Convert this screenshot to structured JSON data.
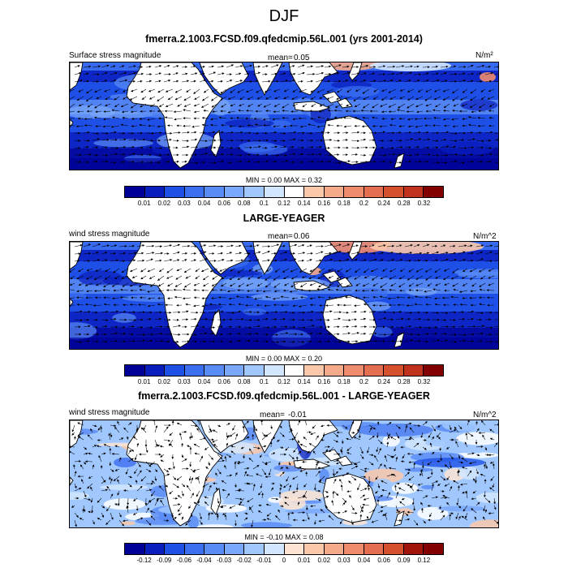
{
  "figure": {
    "title": "DJF"
  },
  "colors": {
    "neg": [
      "#000096",
      "#0a1ebe",
      "#1e50e6",
      "#3c6ef0",
      "#5a8cf5",
      "#7aa8fa",
      "#a0c8ff",
      "#d2e6ff"
    ],
    "pos": [
      "#ffffff",
      "#fde4d2",
      "#fbc8aa",
      "#f5aa8a",
      "#ef8c6e",
      "#e36e50",
      "#d5502d",
      "#c0321e",
      "#a0140a",
      "#820000"
    ],
    "land": "#ffffff",
    "arrow": "#000000"
  },
  "panels": [
    {
      "title": "fmerra.2.1003.FCSD.f09.qfedcmip.56L.001 (yrs 2001-2014)",
      "left_label": "Surface stress magnitude",
      "mean_label": "mean=",
      "mean_value": "0.05",
      "units": "N/m²",
      "min_label": "MIN =",
      "min_value": "0.00",
      "max_label": "MAX =",
      "max_value": "0.32"
    },
    {
      "title": "LARGE-YEAGER",
      "left_label": "wind stress magnitude",
      "mean_label": "mean=",
      "mean_value": "0.06",
      "units": "N/m^2",
      "min_label": "MIN =",
      "min_value": "0.00",
      "max_label": "MAX =",
      "max_value": "0.20"
    },
    {
      "title": "fmerra.2.1003.FCSD.f09.qfedcmip.56L.001 - LARGE-YEAGER",
      "left_label": "wind stress magnitude",
      "mean_label": "mean=",
      "mean_value": "-0.01",
      "units": "N/m^2",
      "min_label": "MIN =",
      "min_value": "-0.10",
      "max_label": "MAX =",
      "max_value": "0.08"
    }
  ],
  "chart_data": [
    {
      "type": "heatmap",
      "title": "fmerra.2.1003.FCSD.f09.qfedcmip.56L.001 (yrs 2001-2014)",
      "variable": "Surface stress magnitude",
      "units": "N/m²",
      "mean": 0.05,
      "min": 0.0,
      "max": 0.32,
      "colorbar_levels": [
        0.01,
        0.02,
        0.03,
        0.04,
        0.06,
        0.08,
        0.1,
        0.12,
        0.14,
        0.16,
        0.18,
        0.2,
        0.24,
        0.28,
        0.32
      ],
      "colorbar_labels": [
        "0.01",
        "0.02",
        "0.03",
        "0.04",
        "0.06",
        "0.08",
        "0.1",
        "0.12",
        "0.14",
        "0.16",
        "0.18",
        "0.2",
        "0.24",
        "0.28",
        "0.32"
      ],
      "colorbar_colors": [
        "#000096",
        "#0a1ebe",
        "#1e50e6",
        "#3c6ef0",
        "#5a8cf5",
        "#7aa8fa",
        "#a0c8ff",
        "#d2e6ff",
        "#ffffff",
        "#fbc8aa",
        "#f5aa8a",
        "#ef8c6e",
        "#e36e50",
        "#d5502d",
        "#c0321e",
        "#820000"
      ]
    },
    {
      "type": "heatmap",
      "title": "LARGE-YEAGER",
      "variable": "wind stress magnitude",
      "units": "N/m^2",
      "mean": 0.06,
      "min": 0.0,
      "max": 0.2,
      "colorbar_levels": [
        0.01,
        0.02,
        0.03,
        0.04,
        0.06,
        0.08,
        0.1,
        0.12,
        0.14,
        0.16,
        0.18,
        0.2,
        0.24,
        0.28,
        0.32
      ],
      "colorbar_labels": [
        "0.01",
        "0.02",
        "0.03",
        "0.04",
        "0.06",
        "0.08",
        "0.1",
        "0.12",
        "0.14",
        "0.16",
        "0.18",
        "0.2",
        "0.24",
        "0.28",
        "0.32"
      ],
      "colorbar_colors": [
        "#000096",
        "#0a1ebe",
        "#1e50e6",
        "#3c6ef0",
        "#5a8cf5",
        "#7aa8fa",
        "#a0c8ff",
        "#d2e6ff",
        "#ffffff",
        "#fbc8aa",
        "#f5aa8a",
        "#ef8c6e",
        "#e36e50",
        "#d5502d",
        "#c0321e",
        "#820000"
      ]
    },
    {
      "type": "heatmap",
      "title": "fmerra.2.1003.FCSD.f09.qfedcmip.56L.001 - LARGE-YEAGER",
      "variable": "wind stress magnitude",
      "units": "N/m^2",
      "mean": -0.01,
      "min": -0.1,
      "max": 0.08,
      "colorbar_levels": [
        -0.12,
        -0.09,
        -0.06,
        -0.04,
        -0.03,
        -0.02,
        -0.01,
        0,
        0.01,
        0.02,
        0.03,
        0.04,
        0.06,
        0.09,
        0.12
      ],
      "colorbar_labels": [
        "-0.12",
        "-0.09",
        "-0.06",
        "-0.04",
        "-0.03",
        "-0.02",
        "-0.01",
        "0",
        "0.01",
        "0.02",
        "0.03",
        "0.04",
        "0.06",
        "0.09",
        "0.12"
      ],
      "colorbar_colors": [
        "#000096",
        "#0a1ebe",
        "#1e50e6",
        "#3c6ef0",
        "#5a8cf5",
        "#7aa8fa",
        "#a0c8ff",
        "#d2e6ff",
        "#fde4d2",
        "#fbc8aa",
        "#f5aa8a",
        "#ef8c6e",
        "#e36e50",
        "#d5502d",
        "#a0140a",
        "#820000"
      ]
    }
  ]
}
